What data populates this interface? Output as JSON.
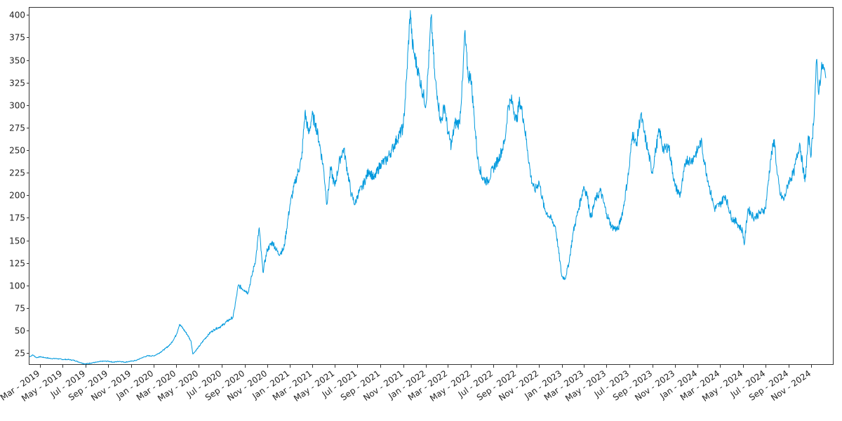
{
  "chart_data": {
    "type": "line",
    "title": "",
    "xlabel": "",
    "ylabel": "",
    "grid": false,
    "legend": "none",
    "ylim": [
      12,
      408
    ],
    "xlim": [
      "2019-02-01",
      "2024-12-31"
    ],
    "y_ticks": [
      25,
      50,
      75,
      100,
      125,
      150,
      175,
      200,
      225,
      250,
      275,
      300,
      325,
      350,
      375,
      400
    ],
    "x_ticks": [
      {
        "date": "2019-03-01",
        "label": "Mar - 2019"
      },
      {
        "date": "2019-05-01",
        "label": "May - 2019"
      },
      {
        "date": "2019-07-01",
        "label": "Jul - 2019"
      },
      {
        "date": "2019-09-01",
        "label": "Sep - 2019"
      },
      {
        "date": "2019-11-01",
        "label": "Nov - 2019"
      },
      {
        "date": "2020-01-01",
        "label": "Jan - 2020"
      },
      {
        "date": "2020-03-01",
        "label": "Mar - 2020"
      },
      {
        "date": "2020-05-01",
        "label": "May - 2020"
      },
      {
        "date": "2020-07-01",
        "label": "Jul - 2020"
      },
      {
        "date": "2020-09-01",
        "label": "Sep - 2020"
      },
      {
        "date": "2020-11-01",
        "label": "Nov - 2020"
      },
      {
        "date": "2021-01-01",
        "label": "Jan - 2021"
      },
      {
        "date": "2021-03-01",
        "label": "Mar - 2021"
      },
      {
        "date": "2021-05-01",
        "label": "May - 2021"
      },
      {
        "date": "2021-07-01",
        "label": "Jul - 2021"
      },
      {
        "date": "2021-09-01",
        "label": "Sep - 2021"
      },
      {
        "date": "2021-11-01",
        "label": "Nov - 2021"
      },
      {
        "date": "2022-01-01",
        "label": "Jan - 2022"
      },
      {
        "date": "2022-03-01",
        "label": "Mar - 2022"
      },
      {
        "date": "2022-05-01",
        "label": "May - 2022"
      },
      {
        "date": "2022-07-01",
        "label": "Jul - 2022"
      },
      {
        "date": "2022-09-01",
        "label": "Sep - 2022"
      },
      {
        "date": "2022-11-01",
        "label": "Nov - 2022"
      },
      {
        "date": "2023-01-01",
        "label": "Jan - 2023"
      },
      {
        "date": "2023-03-01",
        "label": "Mar - 2023"
      },
      {
        "date": "2023-05-01",
        "label": "May - 2023"
      },
      {
        "date": "2023-07-01",
        "label": "Jul - 2023"
      },
      {
        "date": "2023-09-01",
        "label": "Sep - 2023"
      },
      {
        "date": "2023-11-01",
        "label": "Nov - 2023"
      },
      {
        "date": "2024-01-01",
        "label": "Jan - 2024"
      },
      {
        "date": "2024-03-01",
        "label": "Mar - 2024"
      },
      {
        "date": "2024-05-01",
        "label": "May - 2024"
      },
      {
        "date": "2024-07-01",
        "label": "Jul - 2024"
      },
      {
        "date": "2024-09-01",
        "label": "Sep - 2024"
      },
      {
        "date": "2024-11-01",
        "label": "Nov - 2024"
      }
    ],
    "series": [
      {
        "color": "#0099dd",
        "points": [
          [
            "2019-02-01",
            21
          ],
          [
            "2019-02-10",
            23
          ],
          [
            "2019-02-20",
            20
          ],
          [
            "2019-03-01",
            21
          ],
          [
            "2019-03-15",
            20
          ],
          [
            "2019-04-01",
            19
          ],
          [
            "2019-04-15",
            19
          ],
          [
            "2019-05-01",
            18
          ],
          [
            "2019-05-15",
            18
          ],
          [
            "2019-06-01",
            17
          ],
          [
            "2019-06-15",
            15
          ],
          [
            "2019-07-01",
            13
          ],
          [
            "2019-07-15",
            14
          ],
          [
            "2019-08-01",
            15
          ],
          [
            "2019-08-15",
            16
          ],
          [
            "2019-09-01",
            16
          ],
          [
            "2019-09-15",
            15
          ],
          [
            "2019-10-01",
            16
          ],
          [
            "2019-10-15",
            15
          ],
          [
            "2019-11-01",
            16
          ],
          [
            "2019-11-15",
            17
          ],
          [
            "2019-12-01",
            20
          ],
          [
            "2019-12-15",
            22
          ],
          [
            "2020-01-01",
            22
          ],
          [
            "2020-01-15",
            25
          ],
          [
            "2020-02-01",
            30
          ],
          [
            "2020-02-15",
            35
          ],
          [
            "2020-03-01",
            45
          ],
          [
            "2020-03-10",
            57
          ],
          [
            "2020-03-20",
            52
          ],
          [
            "2020-04-01",
            45
          ],
          [
            "2020-04-10",
            38
          ],
          [
            "2020-04-15",
            24
          ],
          [
            "2020-05-01",
            32
          ],
          [
            "2020-05-15",
            40
          ],
          [
            "2020-06-01",
            48
          ],
          [
            "2020-06-15",
            52
          ],
          [
            "2020-07-01",
            55
          ],
          [
            "2020-07-15",
            60
          ],
          [
            "2020-08-01",
            65
          ],
          [
            "2020-08-15",
            100
          ],
          [
            "2020-09-01",
            95
          ],
          [
            "2020-09-10",
            92
          ],
          [
            "2020-09-20",
            110
          ],
          [
            "2020-10-01",
            130
          ],
          [
            "2020-10-10",
            164
          ],
          [
            "2020-10-20",
            115
          ],
          [
            "2020-11-01",
            140
          ],
          [
            "2020-11-15",
            148
          ],
          [
            "2020-12-01",
            135
          ],
          [
            "2020-12-15",
            140
          ],
          [
            "2021-01-01",
            190
          ],
          [
            "2021-01-15",
            215
          ],
          [
            "2021-02-01",
            240
          ],
          [
            "2021-02-10",
            292
          ],
          [
            "2021-02-20",
            268
          ],
          [
            "2021-03-01",
            288
          ],
          [
            "2021-03-10",
            280
          ],
          [
            "2021-03-20",
            260
          ],
          [
            "2021-04-01",
            230
          ],
          [
            "2021-04-10",
            190
          ],
          [
            "2021-04-20",
            230
          ],
          [
            "2021-05-01",
            210
          ],
          [
            "2021-05-15",
            240
          ],
          [
            "2021-05-25",
            252
          ],
          [
            "2021-06-01",
            235
          ],
          [
            "2021-06-15",
            200
          ],
          [
            "2021-06-25",
            190
          ],
          [
            "2021-07-01",
            200
          ],
          [
            "2021-07-15",
            210
          ],
          [
            "2021-08-01",
            228
          ],
          [
            "2021-08-15",
            218
          ],
          [
            "2021-09-01",
            235
          ],
          [
            "2021-09-15",
            238
          ],
          [
            "2021-10-01",
            250
          ],
          [
            "2021-10-15",
            262
          ],
          [
            "2021-11-01",
            275
          ],
          [
            "2021-11-10",
            330
          ],
          [
            "2021-11-20",
            405
          ],
          [
            "2021-11-25",
            370
          ],
          [
            "2021-12-01",
            355
          ],
          [
            "2021-12-10",
            340
          ],
          [
            "2021-12-20",
            320
          ],
          [
            "2022-01-01",
            300
          ],
          [
            "2022-01-10",
            360
          ],
          [
            "2022-01-15",
            398
          ],
          [
            "2022-01-25",
            330
          ],
          [
            "2022-02-01",
            310
          ],
          [
            "2022-02-10",
            280
          ],
          [
            "2022-02-20",
            300
          ],
          [
            "2022-03-01",
            270
          ],
          [
            "2022-03-10",
            255
          ],
          [
            "2022-03-20",
            280
          ],
          [
            "2022-04-01",
            280
          ],
          [
            "2022-04-10",
            330
          ],
          [
            "2022-04-15",
            380
          ],
          [
            "2022-04-25",
            330
          ],
          [
            "2022-05-01",
            335
          ],
          [
            "2022-05-10",
            290
          ],
          [
            "2022-05-20",
            240
          ],
          [
            "2022-06-01",
            220
          ],
          [
            "2022-06-15",
            215
          ],
          [
            "2022-07-01",
            230
          ],
          [
            "2022-07-15",
            240
          ],
          [
            "2022-08-01",
            260
          ],
          [
            "2022-08-10",
            300
          ],
          [
            "2022-08-20",
            305
          ],
          [
            "2022-09-01",
            282
          ],
          [
            "2022-09-10",
            305
          ],
          [
            "2022-09-20",
            285
          ],
          [
            "2022-10-01",
            250
          ],
          [
            "2022-10-10",
            220
          ],
          [
            "2022-10-20",
            205
          ],
          [
            "2022-11-01",
            215
          ],
          [
            "2022-11-15",
            185
          ],
          [
            "2022-12-01",
            175
          ],
          [
            "2022-12-15",
            165
          ],
          [
            "2023-01-01",
            110
          ],
          [
            "2023-01-10",
            108
          ],
          [
            "2023-01-20",
            125
          ],
          [
            "2023-02-01",
            160
          ],
          [
            "2023-02-15",
            185
          ],
          [
            "2023-03-01",
            210
          ],
          [
            "2023-03-10",
            200
          ],
          [
            "2023-03-20",
            175
          ],
          [
            "2023-04-01",
            195
          ],
          [
            "2023-04-15",
            205
          ],
          [
            "2023-05-01",
            180
          ],
          [
            "2023-05-15",
            165
          ],
          [
            "2023-06-01",
            162
          ],
          [
            "2023-06-15",
            185
          ],
          [
            "2023-07-01",
            230
          ],
          [
            "2023-07-10",
            270
          ],
          [
            "2023-07-20",
            255
          ],
          [
            "2023-08-01",
            290
          ],
          [
            "2023-08-10",
            270
          ],
          [
            "2023-08-20",
            250
          ],
          [
            "2023-09-01",
            225
          ],
          [
            "2023-09-10",
            250
          ],
          [
            "2023-09-20",
            272
          ],
          [
            "2023-10-01",
            250
          ],
          [
            "2023-10-15",
            255
          ],
          [
            "2023-11-01",
            210
          ],
          [
            "2023-11-15",
            200
          ],
          [
            "2023-12-01",
            240
          ],
          [
            "2023-12-15",
            238
          ],
          [
            "2024-01-01",
            250
          ],
          [
            "2024-01-10",
            260
          ],
          [
            "2024-01-20",
            235
          ],
          [
            "2024-02-01",
            210
          ],
          [
            "2024-02-15",
            185
          ],
          [
            "2024-03-01",
            190
          ],
          [
            "2024-03-15",
            200
          ],
          [
            "2024-04-01",
            175
          ],
          [
            "2024-04-15",
            170
          ],
          [
            "2024-05-01",
            160
          ],
          [
            "2024-05-05",
            145
          ],
          [
            "2024-05-15",
            185
          ],
          [
            "2024-06-01",
            175
          ],
          [
            "2024-06-15",
            180
          ],
          [
            "2024-07-01",
            185
          ],
          [
            "2024-07-15",
            240
          ],
          [
            "2024-07-25",
            262
          ],
          [
            "2024-08-01",
            225
          ],
          [
            "2024-08-10",
            200
          ],
          [
            "2024-08-20",
            195
          ],
          [
            "2024-09-01",
            215
          ],
          [
            "2024-09-15",
            225
          ],
          [
            "2024-10-01",
            258
          ],
          [
            "2024-10-15",
            215
          ],
          [
            "2024-10-25",
            265
          ],
          [
            "2024-11-01",
            245
          ],
          [
            "2024-11-10",
            300
          ],
          [
            "2024-11-15",
            350
          ],
          [
            "2024-11-20",
            315
          ],
          [
            "2024-12-01",
            345
          ],
          [
            "2024-12-10",
            330
          ]
        ]
      }
    ]
  }
}
